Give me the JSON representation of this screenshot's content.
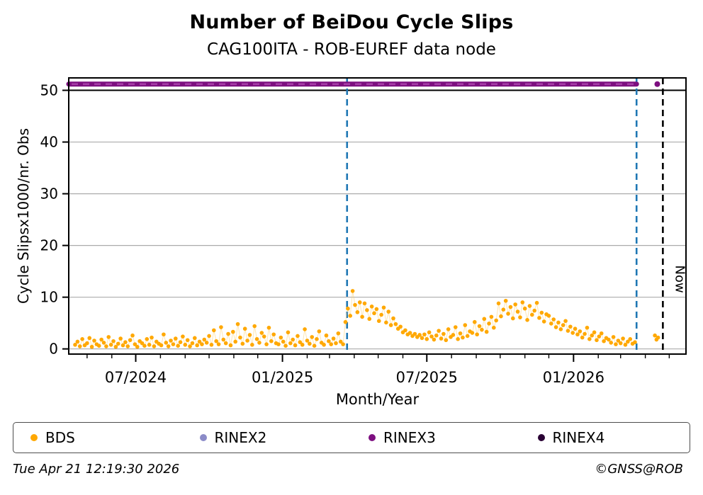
{
  "header": {
    "title": "Number of BeiDou Cycle Slips",
    "subtitle": "CAG100ITA - ROB-EUREF data node"
  },
  "footer": {
    "timestamp": "Tue Apr 21 12:19:30 2026",
    "copyright": "©GNSS@ROB"
  },
  "legend": {
    "items": [
      {
        "label": "BDS",
        "color": "#FFA800"
      },
      {
        "label": "RINEX2",
        "color": "#8B8BC8"
      },
      {
        "label": "RINEX3",
        "color": "#7D0F80"
      },
      {
        "label": "RINEX4",
        "color": "#2A0134"
      }
    ]
  },
  "chart_data": {
    "type": "scatter",
    "title": "Number of BeiDou Cycle Slips",
    "subtitle": "CAG100ITA - ROB-EUREF data node",
    "xlabel": "Month/Year",
    "ylabel": "Cycle Slipsx1000/nr. Obs",
    "ylim": [
      -1.0,
      52.4
    ],
    "y_ticks": [
      0,
      10,
      20,
      30,
      40,
      50
    ],
    "grid": "horizontal-only",
    "grid_color": "#ababab",
    "x_domain_days": 774,
    "x_domain_note": "day 0 = left plot edge (approx 2024-04-08), day 774 = right edge (approx 2026-05-22)",
    "x_ticks_major": [
      {
        "day": 84,
        "label": "07/2024"
      },
      {
        "day": 268,
        "label": "01/2025"
      },
      {
        "day": 449,
        "label": "07/2025"
      },
      {
        "day": 633,
        "label": "01/2026"
      }
    ],
    "x_ticks_minor_days": [
      23,
      54,
      84,
      115,
      146,
      176,
      207,
      237,
      268,
      299,
      327,
      358,
      388,
      419,
      449,
      480,
      511,
      541,
      572,
      602,
      633,
      664,
      692,
      723,
      753
    ],
    "cap_line": {
      "y": 50,
      "color": "#000000"
    },
    "vlines": [
      {
        "day": 349,
        "color": "#1F77B4",
        "style": "dashed",
        "label": ""
      },
      {
        "day": 712,
        "color": "#1F77B4",
        "style": "dashed",
        "label": ""
      },
      {
        "day": 745,
        "color": "#000000",
        "style": "dashed",
        "label": "Now"
      }
    ],
    "series": [
      {
        "name": "BDS",
        "color": "#FFA800",
        "line_color": "rgba(255,205,100,0.5)",
        "marker_radius": 2.8,
        "start_day": 8,
        "step_days": 3,
        "values": [
          0.8,
          1.4,
          0.5,
          1.9,
          0.7,
          1.1,
          2.1,
          0.4,
          1.6,
          0.9,
          0.6,
          1.8,
          1.2,
          0.5,
          2.3,
          0.8,
          1.5,
          0.4,
          1.0,
          2.0,
          0.7,
          1.3,
          0.5,
          1.7,
          2.6,
          0.9,
          0.4,
          1.5,
          1.1,
          0.6,
          1.9,
          0.8,
          2.2,
          0.5,
          1.4,
          1.0,
          0.7,
          2.8,
          1.2,
          0.5,
          1.6,
          0.9,
          2.0,
          0.6,
          1.3,
          2.4,
          0.8,
          1.7,
          0.5,
          1.1,
          2.1,
          0.7,
          1.4,
          0.9,
          1.8,
          1.2,
          2.5,
          0.8,
          3.6,
          1.5,
          0.9,
          4.2,
          1.8,
          1.1,
          2.9,
          0.7,
          3.3,
          1.4,
          4.8,
          2.2,
          1.0,
          3.9,
          1.6,
          2.7,
          0.8,
          4.4,
          1.9,
          1.2,
          3.1,
          2.4,
          0.9,
          4.1,
          1.5,
          2.8,
          1.1,
          0.9,
          2.2,
          1.4,
          0.6,
          3.2,
          1.1,
          1.8,
          0.7,
          2.5,
          1.3,
          0.8,
          3.8,
          1.6,
          1.0,
          2.3,
          0.6,
          1.9,
          3.4,
          1.2,
          0.8,
          2.6,
          1.5,
          0.9,
          2.0,
          1.1,
          3.0,
          1.4,
          0.9,
          5.2,
          7.8,
          6.4,
          11.2,
          8.5,
          7.1,
          9.0,
          6.2,
          8.8,
          7.5,
          5.8,
          8.2,
          6.9,
          7.7,
          5.4,
          6.6,
          8.0,
          5.1,
          7.2,
          4.6,
          5.9,
          4.8,
          3.9,
          4.3,
          3.2,
          3.6,
          2.8,
          3.1,
          2.5,
          2.9,
          2.3,
          2.7,
          2.1,
          2.8,
          1.9,
          3.2,
          2.4,
          1.8,
          2.6,
          3.5,
          2.0,
          2.9,
          1.7,
          3.8,
          2.3,
          2.7,
          4.2,
          1.9,
          3.0,
          2.2,
          4.6,
          2.5,
          3.4,
          3.1,
          5.2,
          2.8,
          4.4,
          3.7,
          5.8,
          3.3,
          4.9,
          6.2,
          4.1,
          5.5,
          8.8,
          6.3,
          7.6,
          9.3,
          6.8,
          8.1,
          5.9,
          8.6,
          7.2,
          6.1,
          9.0,
          7.8,
          5.6,
          8.3,
          6.6,
          7.4,
          8.9,
          6.0,
          7.0,
          5.3,
          6.7,
          6.4,
          4.9,
          5.7,
          4.2,
          5.1,
          3.8,
          4.6,
          5.4,
          3.5,
          4.3,
          3.1,
          3.9,
          2.8,
          3.4,
          2.2,
          2.9,
          4.1,
          1.9,
          2.6,
          3.2,
          1.7,
          2.4,
          3.0,
          1.5,
          2.1,
          1.8,
          1.2,
          2.3,
          0.9,
          1.6,
          1.1,
          2.0,
          0.8,
          1.4,
          1.9,
          1.0,
          1.3
        ],
        "extra_points": [
          [
            735,
            2.6
          ],
          [
            737,
            1.8
          ],
          [
            739,
            2.2
          ]
        ]
      },
      {
        "name": "RINEX3",
        "color": "#7D0F80",
        "dash_highlight_color": "#A63FA8",
        "type": "hband",
        "value": 51.2,
        "start_day": 0,
        "end_day": 712,
        "extra_points": [
          [
            738,
            51.2
          ]
        ]
      },
      {
        "name": "RINEX2",
        "color": "#8B8BC8",
        "values": []
      },
      {
        "name": "RINEX4",
        "color": "#2A0134",
        "values": []
      }
    ]
  }
}
